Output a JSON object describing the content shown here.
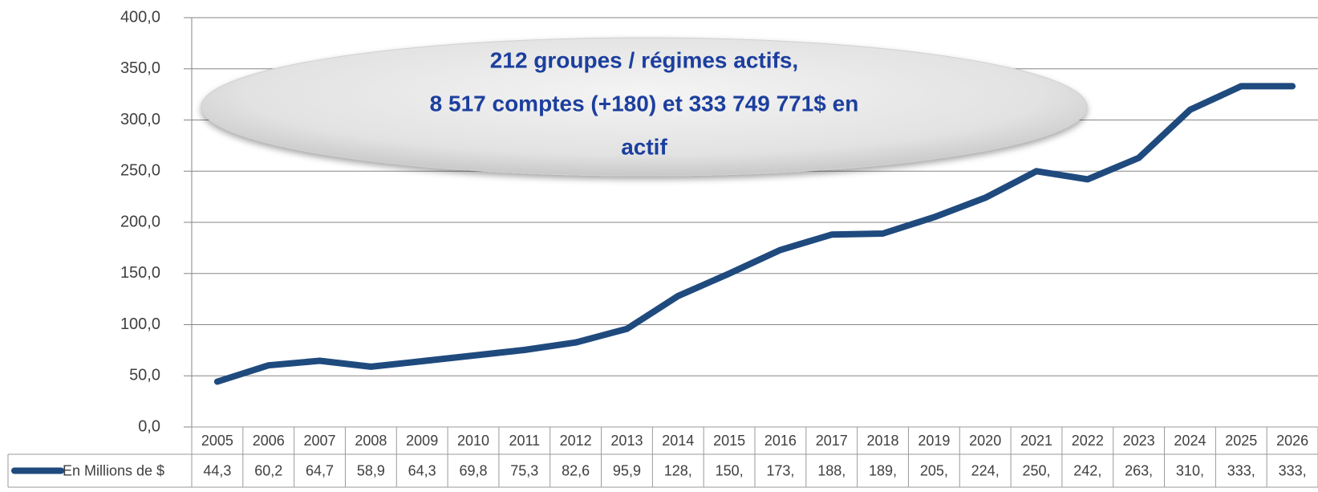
{
  "chart_data": {
    "type": "line",
    "annotation": [
      "212 groupes / régimes actifs,",
      "8 517 comptes (+180) et 333 749 771$ en",
      "actif"
    ],
    "categories": [
      "2005",
      "2006",
      "2007",
      "2008",
      "2009",
      "2010",
      "2011",
      "2012",
      "2013",
      "2014",
      "2015",
      "2016",
      "2017",
      "2018",
      "2019",
      "2020",
      "2021",
      "2022",
      "2023",
      "2024",
      "2025",
      "2026"
    ],
    "series": [
      {
        "name": "En Millions de $",
        "color": "#1f4a7e",
        "values": [
          44.3,
          60.2,
          64.7,
          58.9,
          64.3,
          69.8,
          75.3,
          82.6,
          95.9,
          128,
          150,
          173,
          188,
          189,
          205,
          224,
          250,
          242,
          263,
          310,
          333,
          333
        ],
        "value_labels": [
          "44,3",
          "60,2",
          "64,7",
          "58,9",
          "64,3",
          "69,8",
          "75,3",
          "82,6",
          "95,9",
          "128,",
          "150,",
          "173,",
          "188,",
          "189,",
          "205,",
          "224,",
          "250,",
          "242,",
          "263,",
          "310,",
          "333,",
          "333,"
        ]
      }
    ],
    "ylim": [
      0,
      400
    ],
    "yticks": [
      {
        "value": 0,
        "label": "0,0"
      },
      {
        "value": 50,
        "label": "50,0"
      },
      {
        "value": 100,
        "label": "100,0"
      },
      {
        "value": 150,
        "label": "150,0"
      },
      {
        "value": 200,
        "label": "200,0"
      },
      {
        "value": 250,
        "label": "250,0"
      },
      {
        "value": 300,
        "label": "300,0"
      },
      {
        "value": 350,
        "label": "350,0"
      },
      {
        "value": 400,
        "label": "400,0"
      }
    ],
    "grid": true,
    "data_table": true
  }
}
